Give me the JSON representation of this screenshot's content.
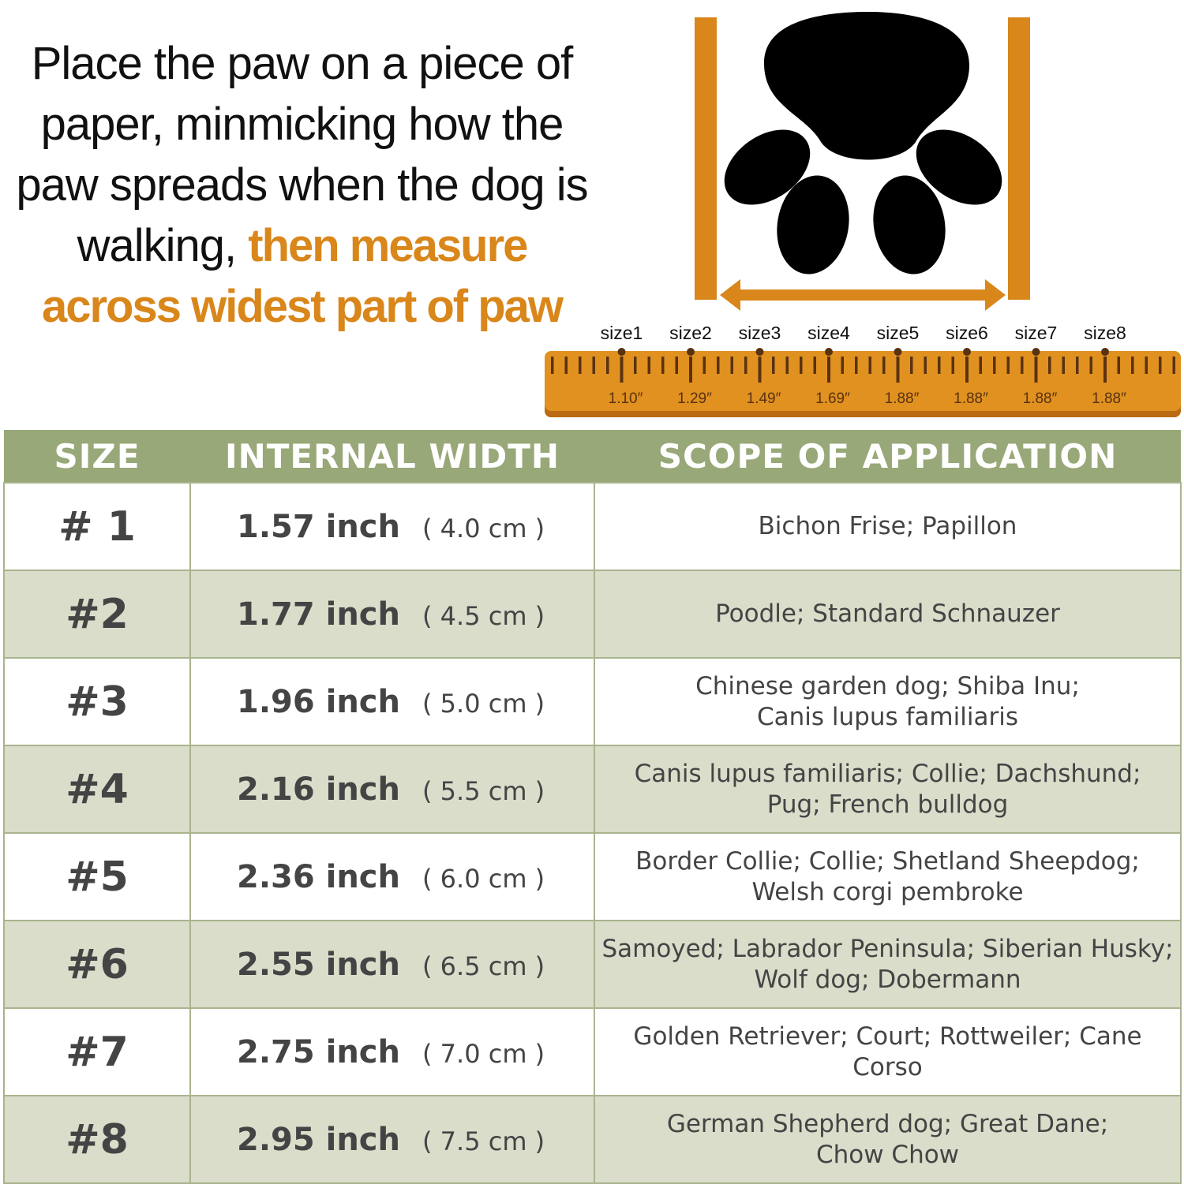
{
  "intro": {
    "line1": "Place the paw on a piece of paper, minmicking how the paw spreads when the dog is walking,",
    "highlight": "then measure across widest part of paw"
  },
  "colors": {
    "accent": "#d9861a",
    "header": "#98a878",
    "alt_row": "#d9ddca",
    "paw": "#000000"
  },
  "ruler": {
    "sizes": [
      "size1",
      "size2",
      "size3",
      "size4",
      "size5",
      "size6",
      "size7",
      "size8"
    ],
    "values": [
      "1.10″",
      "1.29″",
      "1.49″",
      "1.69″",
      "1.88″",
      "1.88″",
      "1.88″",
      "1.88″"
    ]
  },
  "table": {
    "headers": [
      "SIZE",
      "INTERNAL WIDTH",
      "SCOPE OF APPLICATION"
    ],
    "rows": [
      {
        "size": "# 1",
        "inch": "1.57 inch",
        "cm": "( 4.0 cm )",
        "scope": [
          "Bichon Frise; Papillon"
        ]
      },
      {
        "size": "#2",
        "inch": "1.77 inch",
        "cm": "( 4.5 cm )",
        "scope": [
          "Poodle; Standard Schnauzer"
        ]
      },
      {
        "size": "#3",
        "inch": "1.96 inch",
        "cm": "( 5.0 cm )",
        "scope": [
          "Chinese garden dog; Shiba Inu;",
          "Canis lupus familiaris"
        ]
      },
      {
        "size": "#4",
        "inch": "2.16 inch",
        "cm": "( 5.5 cm )",
        "scope": [
          "Canis lupus familiaris; Collie; Dachshund;",
          "Pug; French bulldog"
        ]
      },
      {
        "size": "#5",
        "inch": "2.36 inch",
        "cm": "( 6.0 cm )",
        "scope": [
          "Border Collie; Collie; Shetland Sheepdog;",
          "Welsh corgi pembroke"
        ]
      },
      {
        "size": "#6",
        "inch": "2.55 inch",
        "cm": "( 6.5 cm )",
        "scope": [
          "Samoyed; Labrador Peninsula; Siberian Husky;",
          "Wolf dog; Dobermann"
        ]
      },
      {
        "size": "#7",
        "inch": "2.75 inch",
        "cm": "( 7.0 cm )",
        "scope": [
          "Golden Retriever; Court; Rottweiler; Cane Corso"
        ]
      },
      {
        "size": "#8",
        "inch": "2.95 inch",
        "cm": "( 7.5 cm )",
        "scope": [
          "German Shepherd dog; Great Dane;",
          "Chow Chow"
        ]
      }
    ]
  }
}
